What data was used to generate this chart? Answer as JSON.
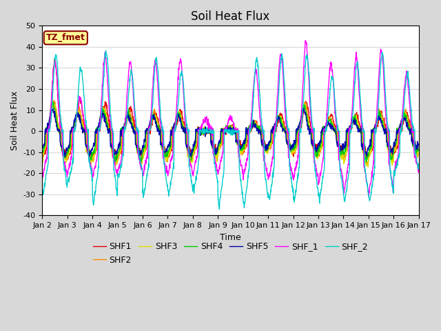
{
  "title": "Soil Heat Flux",
  "xlabel": "Time",
  "ylabel": "Soil Heat Flux",
  "ylim": [
    -40,
    50
  ],
  "yticks": [
    -40,
    -30,
    -20,
    -10,
    0,
    10,
    20,
    30,
    40,
    50
  ],
  "xtick_labels": [
    "Jan 2",
    "Jan 3",
    "Jan 4",
    "Jan 5",
    "Jan 6",
    "Jan 7",
    "Jan 8",
    "Jan 9",
    "Jan 10",
    "Jan 11",
    "Jan 12",
    "Jan 13",
    "Jan 14",
    "Jan 15",
    "Jan 16",
    "Jan 17"
  ],
  "n_days": 15,
  "points_per_day": 96,
  "series": {
    "SHF1": {
      "color": "#dd0000"
    },
    "SHF2": {
      "color": "#ff8800"
    },
    "SHF3": {
      "color": "#dddd00"
    },
    "SHF4": {
      "color": "#00cc00"
    },
    "SHF5": {
      "color": "#0000aa"
    },
    "SHF_1": {
      "color": "#ff00ff"
    },
    "SHF_2": {
      "color": "#00cccc"
    }
  },
  "series_order": [
    "SHF1",
    "SHF2",
    "SHF3",
    "SHF4",
    "SHF5",
    "SHF_1",
    "SHF_2"
  ],
  "legend_label": "TZ_fmet",
  "legend_label_bg": "#ffff99",
  "legend_label_border": "#8b0000",
  "outer_bg": "#d8d8d8",
  "plot_bg": "#ffffff",
  "grid_color": "#d8d8d8",
  "title_fontsize": 12,
  "axis_fontsize": 9,
  "tick_fontsize": 8,
  "legend_fontsize": 9,
  "line_width": 1.0
}
